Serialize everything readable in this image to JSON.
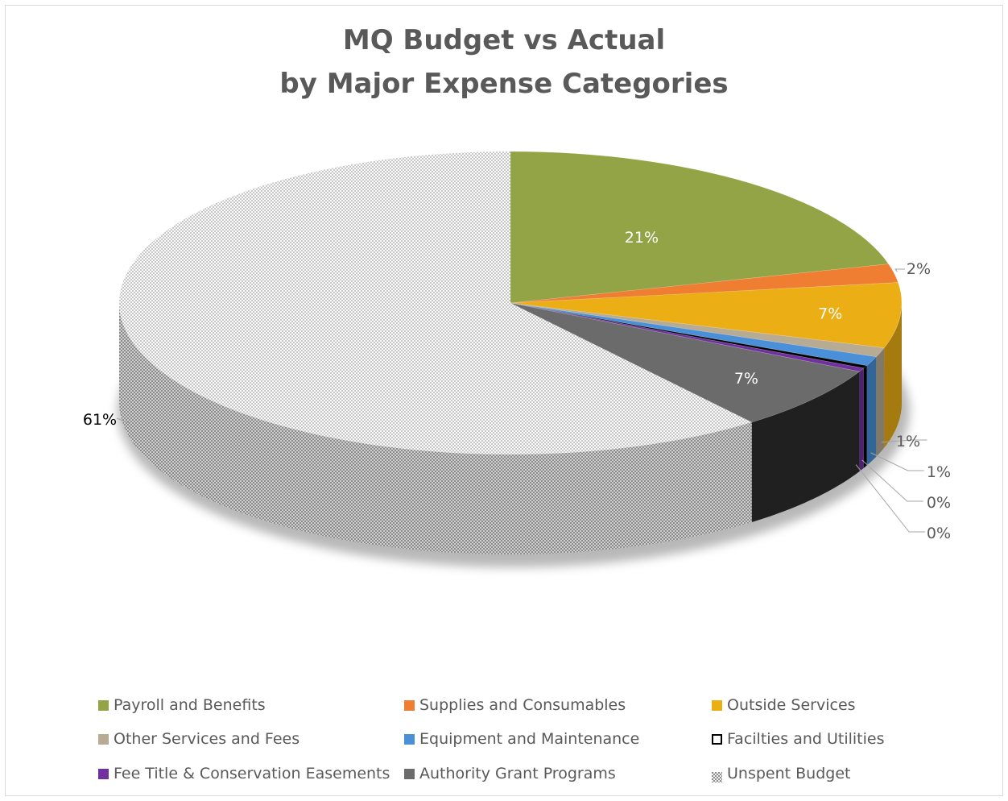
{
  "chart_data": {
    "type": "pie",
    "style": "3d",
    "title": [
      "MQ Budget vs Actual",
      "by Major Expense Categories"
    ],
    "data_labels": "percent",
    "legend_position": "bottom",
    "slices": [
      {
        "name": "Payroll and Benefits",
        "value": 21,
        "label": "21%",
        "color": "#92a445"
      },
      {
        "name": "Supplies and Consumables",
        "value": 2,
        "label": "2%",
        "color": "#ef7d32"
      },
      {
        "name": "Outside Services",
        "value": 7,
        "label": "7%",
        "color": "#ebaf15"
      },
      {
        "name": "Other Services and Fees",
        "value": 1,
        "label": "1%",
        "color": "#b8ab93"
      },
      {
        "name": "Equipment and Maintenance",
        "value": 1,
        "label": "1%",
        "color": "#4a90d9"
      },
      {
        "name": "Facilties and Utilities",
        "value": 0.3,
        "label": "0%",
        "color": "#000000"
      },
      {
        "name": "Fee Title & Conservation Easements",
        "value": 0.4,
        "label": "0%",
        "color": "#7030a0"
      },
      {
        "name": "Authority Grant Programs",
        "value": 7,
        "label": "7%",
        "color": "#6b6b6b"
      },
      {
        "name": "Unspent Budget",
        "value": 61,
        "label": "61%",
        "color": "#e0e0e0",
        "pattern": "checker"
      }
    ]
  }
}
